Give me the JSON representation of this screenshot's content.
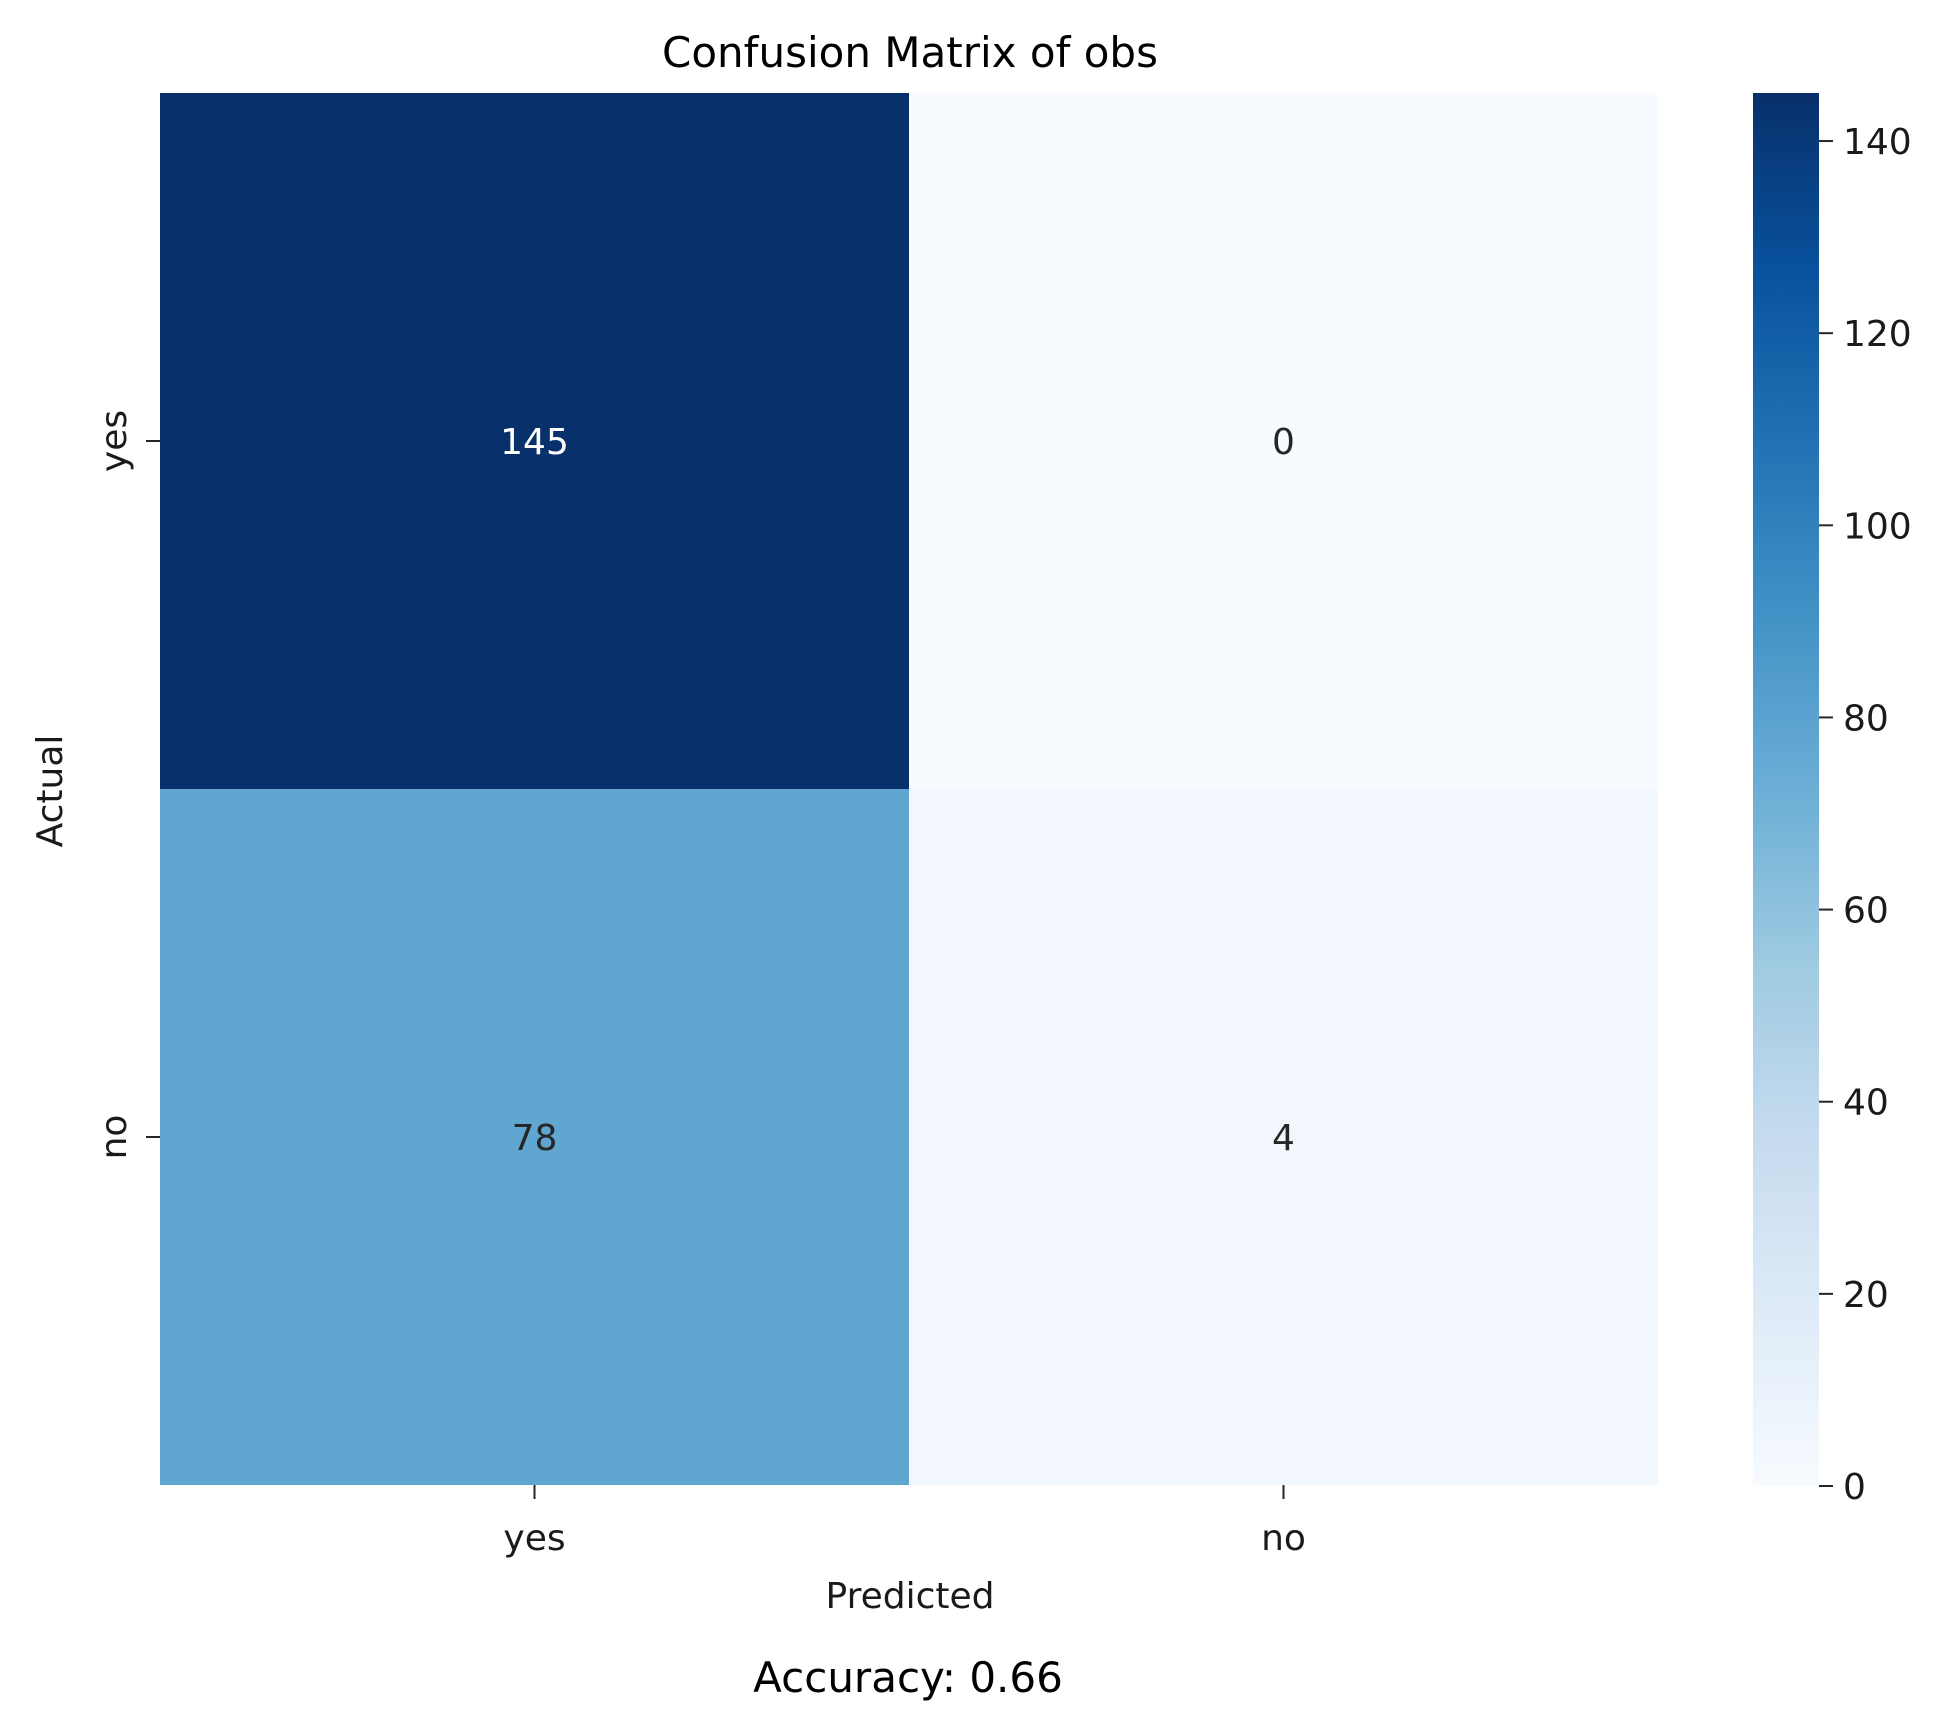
{
  "chart_data": {
    "type": "heatmap",
    "title": "Confusion Matrix of obs",
    "xlabel": "Predicted",
    "ylabel": "Actual",
    "x_categories": [
      "yes",
      "no"
    ],
    "y_categories": [
      "yes",
      "no"
    ],
    "values": [
      [
        145,
        0
      ],
      [
        78,
        4
      ]
    ],
    "colorbar": {
      "range": [
        0,
        145
      ],
      "ticks": [
        0,
        20,
        40,
        60,
        80,
        100,
        120,
        140
      ],
      "colormap": "Blues"
    },
    "footer": "Accuracy: 0.66"
  }
}
